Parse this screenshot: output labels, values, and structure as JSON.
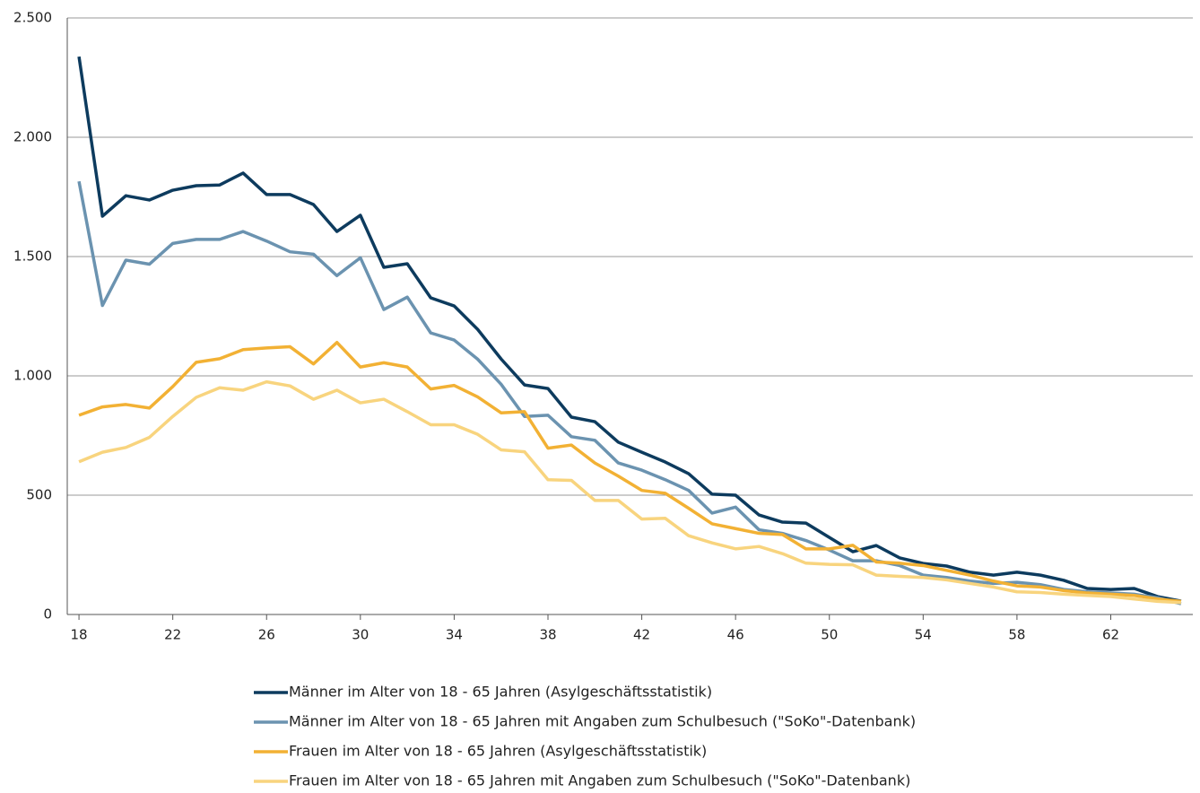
{
  "chart_data": {
    "type": "line",
    "x": [
      18,
      19,
      20,
      21,
      22,
      23,
      24,
      25,
      26,
      27,
      28,
      29,
      30,
      31,
      32,
      33,
      34,
      35,
      36,
      37,
      38,
      39,
      40,
      41,
      42,
      43,
      44,
      45,
      46,
      47,
      48,
      49,
      50,
      51,
      52,
      53,
      54,
      55,
      56,
      57,
      58,
      59,
      60,
      61,
      62,
      63,
      64,
      65
    ],
    "xlim": [
      17.5,
      65.5
    ],
    "xticks": [
      18,
      22,
      26,
      30,
      34,
      38,
      42,
      46,
      50,
      54,
      58,
      62
    ],
    "ylim": [
      0,
      2500
    ],
    "yticks": [
      0,
      500,
      {
        "value": 1000,
        "label": "1.000"
      },
      {
        "value": 1500,
        "label": "1.500"
      },
      {
        "value": 2000,
        "label": "2.000"
      },
      {
        "value": 2500,
        "label": "2.500"
      }
    ],
    "grid": true,
    "legend": "bottom",
    "series": [
      {
        "name": "Männer im Alter von 18 - 65 Jahren (Asylgeschäftsstatistik)",
        "color": "#0d3b5e",
        "values": [
          2338,
          1669,
          1755,
          1737,
          1778,
          1797,
          1800,
          1850,
          1760,
          1760,
          1718,
          1605,
          1673,
          1455,
          1470,
          1327,
          1293,
          1195,
          1071,
          962,
          947,
          827,
          808,
          722,
          680,
          639,
          590,
          504,
          500,
          417,
          387,
          383,
          323,
          263,
          289,
          237,
          214,
          203,
          177,
          165,
          177,
          165,
          143,
          109,
          105,
          109,
          75,
          56
        ]
      },
      {
        "name": "Männer im Alter von 18 - 65 Jahren mit Angaben zum Schulbesuch (\"SoKo\"-Datenbank)",
        "color": "#6b93b0",
        "values": [
          1815,
          1295,
          1485,
          1468,
          1555,
          1572,
          1572,
          1605,
          1565,
          1520,
          1510,
          1420,
          1495,
          1278,
          1330,
          1180,
          1150,
          1070,
          965,
          830,
          835,
          745,
          730,
          635,
          605,
          565,
          520,
          425,
          450,
          355,
          340,
          310,
          270,
          225,
          225,
          205,
          165,
          155,
          140,
          130,
          135,
          125,
          105,
          95,
          90,
          85,
          70,
          45
        ]
      },
      {
        "name": "Frauen im Alter von 18 - 65 Jahren (Asylgeschäftsstatistik)",
        "color": "#f2b134",
        "values": [
          835,
          870,
          880,
          865,
          955,
          1057,
          1072,
          1110,
          1117,
          1122,
          1050,
          1140,
          1037,
          1055,
          1037,
          945,
          960,
          912,
          845,
          850,
          697,
          710,
          635,
          580,
          520,
          508,
          445,
          380,
          360,
          340,
          335,
          275,
          275,
          290,
          220,
          215,
          205,
          185,
          165,
          140,
          120,
          115,
          100,
          90,
          85,
          80,
          65,
          55
        ]
      },
      {
        "name": "Frauen im Alter von 18 - 65 Jahren mit Angaben zum Schulbesuch (\"SoKo\"-Datenbank)",
        "color": "#f8d47e",
        "values": [
          640,
          680,
          700,
          742,
          830,
          910,
          950,
          940,
          975,
          958,
          902,
          940,
          887,
          902,
          850,
          795,
          795,
          755,
          690,
          682,
          565,
          562,
          478,
          478,
          400,
          403,
          330,
          300,
          275,
          285,
          255,
          215,
          210,
          208,
          165,
          160,
          155,
          145,
          130,
          115,
          95,
          92,
          85,
          80,
          75,
          65,
          55,
          50
        ]
      }
    ]
  }
}
